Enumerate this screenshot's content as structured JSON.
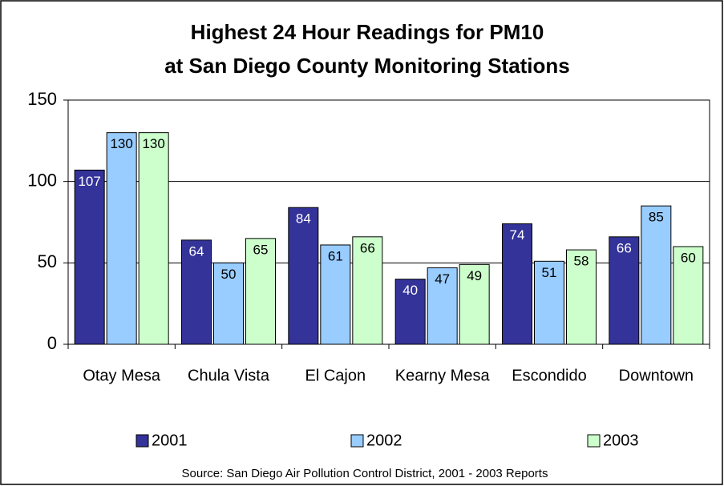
{
  "chart_data": {
    "type": "bar",
    "title": "Highest 24 Hour Readings for PM10",
    "subtitle": "at San Diego County Monitoring Stations",
    "categories": [
      "Otay Mesa",
      "Chula Vista",
      "El Cajon",
      "Kearny Mesa",
      "Escondido",
      "Downtown"
    ],
    "series": [
      {
        "name": "2001",
        "color": "#333399",
        "values": [
          107,
          64,
          84,
          40,
          74,
          66
        ]
      },
      {
        "name": "2002",
        "color": "#99ccff",
        "values": [
          130,
          50,
          61,
          47,
          51,
          85
        ]
      },
      {
        "name": "2003",
        "color": "#ccffcc",
        "values": [
          130,
          65,
          66,
          49,
          58,
          60
        ]
      }
    ],
    "ylim": [
      0,
      150
    ],
    "yticks": [
      0,
      50,
      100,
      150
    ],
    "grid": true,
    "legend": "bottom",
    "source": "Source: San Diego Air Pollution Control District, 2001 - 2003 Reports"
  }
}
